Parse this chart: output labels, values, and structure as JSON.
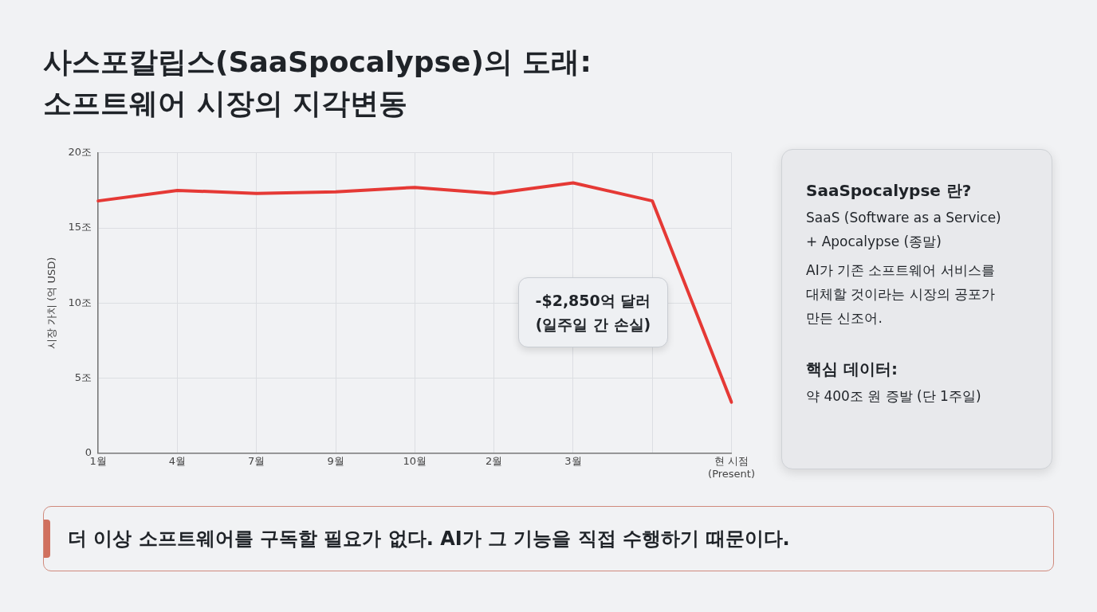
{
  "chart_data": {
    "type": "line",
    "title": "사스포칼립스(SaaSpocalypse)의 도래:\n소프트웨어 시장의 지각변동",
    "ylabel": "시장 가치 (억 USD)",
    "categories": [
      "1월",
      "4월",
      "7월",
      "9월",
      "10월",
      "2월",
      "3월",
      null,
      "현 시점\n(Present)"
    ],
    "series": [
      {
        "color": "#e53935",
        "values": [
          16.8,
          17.5,
          17.3,
          17.4,
          17.7,
          17.3,
          18.0,
          16.8,
          3.4
        ]
      }
    ],
    "ylim": [
      0,
      20
    ],
    "yticks": [
      0,
      {
        "value": 5,
        "label": "5조"
      },
      {
        "value": 10,
        "label": "10조"
      },
      {
        "value": 15,
        "label": "15조"
      },
      {
        "value": 20,
        "label": "20조"
      }
    ],
    "grid": true,
    "legend": false,
    "marker": "none",
    "line_style": "solid",
    "annotations": [
      "-$2,850억 달러\n(일주일 간 손실)",
      "SaaSpocalypse 란?",
      "SaaS (Software as a Service)\n+ Apocalypse (종말)",
      "AI가 기존 소프트웨어 서비스를\n대체할 것이라는 시장의 공포가\n만든 신조어.",
      "핵심 데이터:",
      "약 400조 원 증발 (단 1주일)",
      "더 이상 소프트웨어를 구독할 필요가 없다. AI가 그 기능을 직접 수행하기 때문이다."
    ]
  }
}
